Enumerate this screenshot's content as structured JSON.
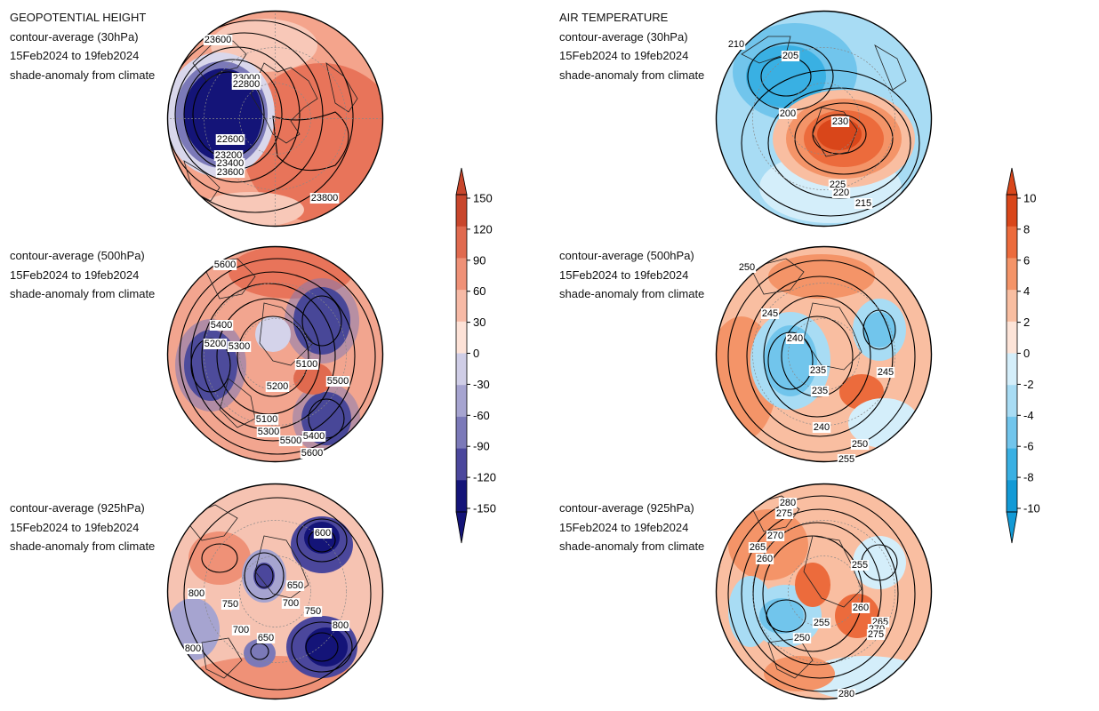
{
  "geopotential": {
    "title": "GEOPOTENTIAL HEIGHT",
    "panels": [
      {
        "contour": "contour-average (30hPa)",
        "dates": "15Feb2024 to 19feb2024",
        "shade": "shade-anomaly from climate",
        "labels": [
          "23600",
          "23000",
          "22800",
          "22600",
          "23200",
          "23400",
          "23600",
          "23800"
        ]
      },
      {
        "contour": "contour-average (500hPa)",
        "dates": "15Feb2024 to 19feb2024",
        "shade": "shade-anomaly from climate",
        "labels": [
          "5600",
          "5400",
          "5200",
          "5300",
          "5100",
          "5200",
          "5500",
          "5100",
          "5300",
          "5500",
          "5400",
          "5600"
        ]
      },
      {
        "contour": "contour-average (925hPa)",
        "dates": "15Feb2024 to 19feb2024",
        "shade": "shade-anomaly from climate",
        "labels": [
          "600",
          "650",
          "800",
          "750",
          "700",
          "750",
          "800",
          "700",
          "650",
          "800"
        ]
      }
    ],
    "colorbar": {
      "ticks": [
        "150",
        "120",
        "90",
        "60",
        "30",
        "0",
        "-30",
        "-60",
        "-90",
        "-120",
        "-150"
      ],
      "colors": [
        "#c8462c",
        "#e06a4f",
        "#ef9177",
        "#f7baa6",
        "#fde2d7",
        "#f4f4fa",
        "#cfcde6",
        "#a6a4d0",
        "#7b79b8",
        "#4b479c",
        "#141478"
      ]
    }
  },
  "temperature": {
    "title": "AIR TEMPERATURE",
    "panels": [
      {
        "contour": "contour-average (30hPa)",
        "dates": "15Feb2024 to 19feb2024",
        "shade": "shade-anomaly from climate",
        "labels": [
          "210",
          "205",
          "200",
          "230",
          "225",
          "220",
          "215"
        ]
      },
      {
        "contour": "contour-average (500hPa)",
        "dates": "15Feb2024 to 19feb2024",
        "shade": "shade-anomaly from climate",
        "labels": [
          "250",
          "245",
          "240",
          "235",
          "235",
          "245",
          "240",
          "250",
          "255"
        ]
      },
      {
        "contour": "contour-average (925hPa)",
        "dates": "15Feb2024 to 19feb2024",
        "shade": "shade-anomaly from climate",
        "labels": [
          "280",
          "275",
          "270",
          "265",
          "260",
          "255",
          "260",
          "265",
          "255",
          "250",
          "270",
          "275",
          "280"
        ]
      }
    ],
    "colorbar": {
      "ticks": [
        "10",
        "8",
        "6",
        "4",
        "2",
        "0",
        "-2",
        "-4",
        "-6",
        "-8",
        "-10"
      ],
      "colors": [
        "#d9461a",
        "#ec6b3c",
        "#f49468",
        "#f9bea1",
        "#fde4d8",
        "#f4f8fb",
        "#d4eefa",
        "#a8dcf4",
        "#71c5ec",
        "#39b0e3",
        "#129ad6"
      ]
    }
  },
  "colors": {
    "outline": "#000000",
    "label_bg": "#ffffff"
  }
}
